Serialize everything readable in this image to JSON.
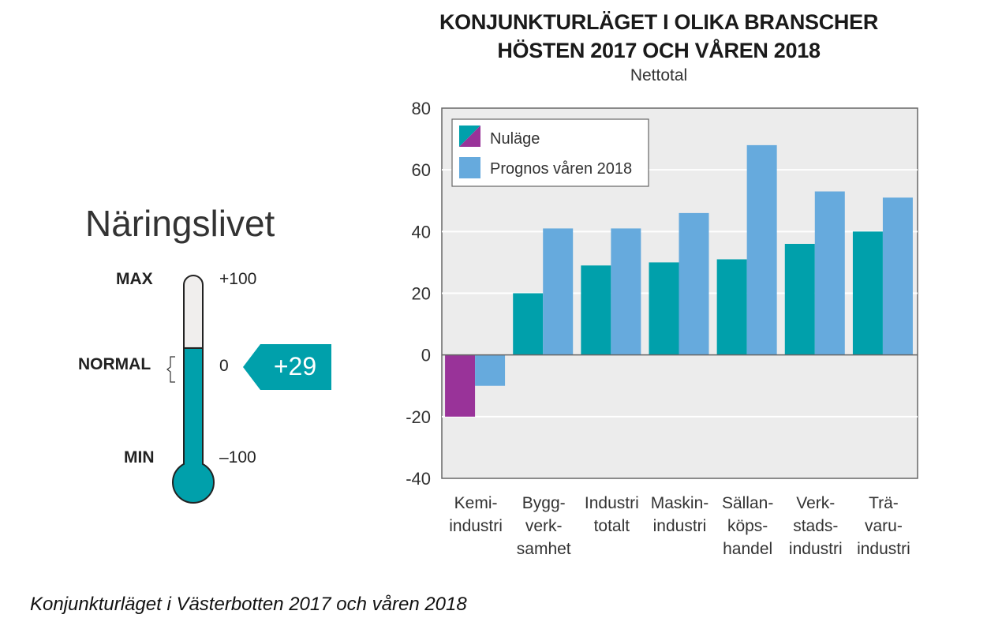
{
  "thermometer": {
    "title": "Näringslivet",
    "max_label": "MAX",
    "normal_label": "NORMAL",
    "min_label": "MIN",
    "max_value_label": "+100",
    "zero_value_label": "0",
    "min_value_label": "–100",
    "scale_min": -100,
    "scale_max": 100,
    "value": 29,
    "value_label": "+29",
    "fill_color": "#00a0ab",
    "empty_color": "#f0eeed"
  },
  "caption": "Konjunkturläget i Västerbotten 2017 och våren 2018",
  "chart_data": {
    "type": "bar",
    "title": "KONJUNKTURLÄGET I OLIKA BRANSCHER\nHÖSTEN 2017 OCH VÅREN 2018",
    "title_lines": [
      "KONJUNKTURLÄGET I OLIKA BRANSCHER",
      "HÖSTEN 2017 OCH VÅREN 2018"
    ],
    "subtitle": "Nettotal",
    "xlabel": "",
    "ylabel": "",
    "ylim": [
      -40,
      80
    ],
    "yticks": [
      80,
      60,
      40,
      20,
      0,
      -20,
      -40
    ],
    "grid": true,
    "legend_position": "top-left",
    "categories": [
      [
        "Kemi-",
        "industri"
      ],
      [
        "Bygg-",
        "verk-",
        "samhet"
      ],
      [
        "Industri",
        "totalt"
      ],
      [
        "Maskin-",
        "industri"
      ],
      [
        "Sällan-",
        "köps-",
        "handel"
      ],
      [
        "Verk-",
        "stads-",
        "industri"
      ],
      [
        "Trä-",
        "varu-",
        "industri"
      ]
    ],
    "series": [
      {
        "name": "Nuläge",
        "values": [
          -20,
          20,
          29,
          30,
          31,
          36,
          40
        ],
        "color": "#00a0ab",
        "negative_color": "#993399"
      },
      {
        "name": "Prognos våren 2018",
        "values": [
          -10,
          41,
          41,
          46,
          68,
          53,
          51
        ],
        "color": "#66aadd"
      }
    ]
  }
}
